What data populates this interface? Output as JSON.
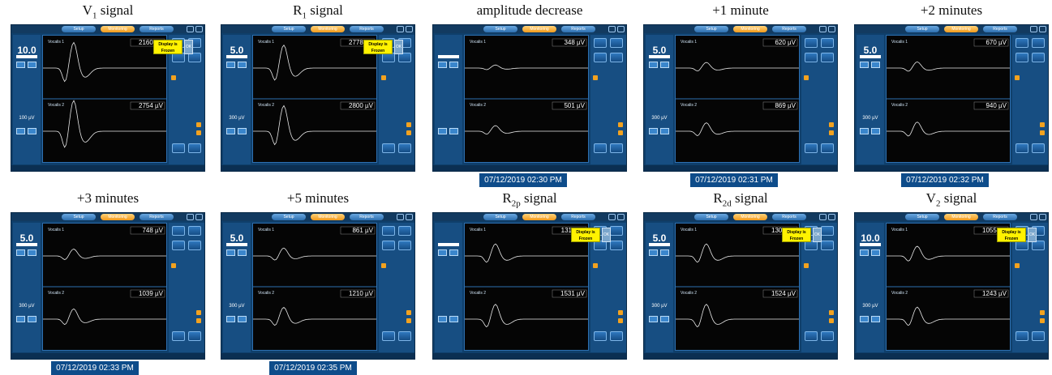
{
  "ui": {
    "tabs": [
      "Setup",
      "Monitoring",
      "Reports"
    ],
    "frozen_label": "Display is Frozen",
    "ok_label": "OK"
  },
  "panels": [
    {
      "title": "V",
      "sub": "1",
      "tail": " signal",
      "stim": "10.0",
      "threshold": "100 µV",
      "frozen": true,
      "v1": "2160 µV",
      "v2": "2754 µV",
      "amp1": 1.0,
      "amp2": 1.2,
      "stamp": ""
    },
    {
      "title": "R",
      "sub": "1",
      "tail": " signal",
      "stim": "5.0",
      "threshold": "300 µV",
      "frozen": true,
      "v1": "2778 µV",
      "v2": "2800 µV",
      "amp1": 0.9,
      "amp2": 1.0,
      "stamp": ""
    },
    {
      "title": "amplitude decrease",
      "sub": "",
      "tail": "",
      "stim": "",
      "threshold": "",
      "frozen": false,
      "v1": "348 µV",
      "v2": "501 µV",
      "amp1": 0.12,
      "amp2": 0.22,
      "stamp": "07/12/2019 02:30 PM"
    },
    {
      "title": "+1 minute",
      "sub": "",
      "tail": "",
      "stim": "5.0",
      "threshold": "300 µV",
      "frozen": false,
      "v1": "620 µV",
      "v2": "869 µV",
      "amp1": 0.22,
      "amp2": 0.33,
      "stamp": "07/12/2019 02:31 PM"
    },
    {
      "title": "+2 minutes",
      "sub": "",
      "tail": "",
      "stim": "5.0",
      "threshold": "300 µV",
      "frozen": false,
      "v1": "670 µV",
      "v2": "940 µV",
      "amp1": 0.24,
      "amp2": 0.36,
      "stamp": "07/12/2019 02:32 PM"
    },
    {
      "title": "+3 minutes",
      "sub": "",
      "tail": "",
      "stim": "5.0",
      "threshold": "300 µV",
      "frozen": false,
      "v1": "748 µV",
      "v2": "1039 µV",
      "amp1": 0.27,
      "amp2": 0.4,
      "stamp": "07/12/2019 02:33 PM"
    },
    {
      "title": "+5 minutes",
      "sub": "",
      "tail": "",
      "stim": "5.0",
      "threshold": "300 µV",
      "frozen": false,
      "v1": "861 µV",
      "v2": "1210 µV",
      "amp1": 0.31,
      "amp2": 0.46,
      "stamp": "07/12/2019 02:35 PM"
    },
    {
      "title": "R",
      "sub": "2p",
      "tail": " signal",
      "stim": "",
      "threshold": "",
      "frozen": true,
      "v1": "1311 µV",
      "v2": "1531 µV",
      "amp1": 0.47,
      "amp2": 0.58,
      "stamp": ""
    },
    {
      "title": "R",
      "sub": "2d",
      "tail": " signal",
      "stim": "5.0",
      "threshold": "300 µV",
      "frozen": true,
      "v1": "1301 µV",
      "v2": "1524 µV",
      "amp1": 0.47,
      "amp2": 0.58,
      "stamp": ""
    },
    {
      "title": "V",
      "sub": "2",
      "tail": " signal",
      "stim": "10.0",
      "threshold": "300 µV",
      "frozen": true,
      "v1": "1055 µV",
      "v2": "1243 µV",
      "amp1": 0.38,
      "amp2": 0.47,
      "stamp": ""
    }
  ]
}
